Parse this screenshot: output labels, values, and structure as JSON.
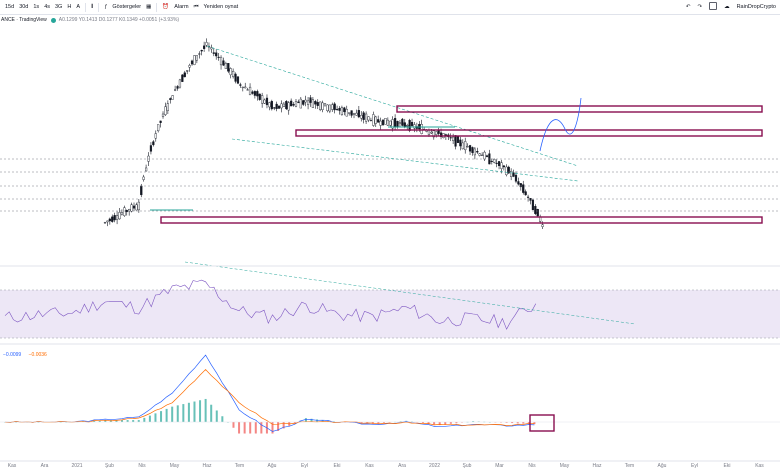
{
  "toolbar": {
    "intervals": [
      "15d",
      "30d",
      "1s",
      "4s",
      "3G",
      "H",
      "A"
    ],
    "indicators_label": "Göstergeler",
    "alarm_label": "Alarm",
    "replay_label": "Yeniden oynat",
    "username": "RainDropCrypto"
  },
  "legend": {
    "symbol": "ANCE · TradingView",
    "ohlc": "A0.1299 Y0.1413 D0.1277 K0.1349 +0.0051 (+3.93%)"
  },
  "macd_legend": {
    "macd": "−0.0099",
    "signal": "−0.0036"
  },
  "colors": {
    "price_candles": "#131722",
    "trendline": "#26a69a",
    "zone": "#880e4f",
    "rsi_line": "#7e57c2",
    "rsi_band": "#ede7f6",
    "macd_line": "#2962ff",
    "signal_line": "#ff6d00",
    "hist_positive": "#26a69a",
    "hist_negative": "#ef5350"
  },
  "chart_data": [
    {
      "type": "line",
      "panel": "price",
      "style": "candlestick",
      "x_ticks": [
        "Kas",
        "Ara",
        "2021",
        "Şub",
        "Nis",
        "May",
        "Haz",
        "Tem",
        "Ağu",
        "Eyl",
        "Eki",
        "Kas",
        "Ara",
        "2022",
        "Şub",
        "Mar",
        "Nis",
        "May",
        "Haz",
        "Tem",
        "Ağu",
        "Eyl",
        "Eki",
        "Kas"
      ],
      "x": [
        "2020-11",
        "2020-12",
        "2021-01",
        "2021-02",
        "2021-03",
        "2021-04",
        "2021-05",
        "2021-06",
        "2021-07",
        "2021-08",
        "2021-09",
        "2021-10",
        "2021-11",
        "2021-12",
        "2022-01",
        "2022-02",
        "2022-03"
      ],
      "series": [
        {
          "values": [
            null,
            null,
            null,
            0.14,
            0.17,
            0.55,
            0.95,
            0.62,
            0.48,
            0.52,
            0.47,
            0.42,
            0.4,
            0.36,
            0.3,
            0.24,
            0.13
          ]
        }
      ]
    },
    {
      "type": "line",
      "panel": "rsi",
      "series": [
        {
          "values": [
            45,
            48,
            50,
            62,
            55,
            74,
            80,
            52,
            45,
            58,
            48,
            46,
            55,
            42,
            44,
            40,
            62
          ]
        }
      ]
    },
    {
      "type": "line",
      "panel": "macd",
      "series": [
        {
          "values": [
            0,
            0,
            0,
            0.01,
            0.02,
            0.12,
            0.28,
            0.05,
            -0.04,
            0.01,
            0.0,
            -0.01,
            0.0,
            -0.02,
            -0.01,
            -0.015,
            -0.0099
          ]
        },
        {
          "values": [
            0,
            0,
            0,
            0.005,
            0.015,
            0.08,
            0.22,
            0.08,
            -0.01,
            0.0,
            0.0,
            -0.005,
            -0.003,
            -0.012,
            -0.012,
            -0.013,
            -0.0036
          ]
        }
      ]
    }
  ]
}
